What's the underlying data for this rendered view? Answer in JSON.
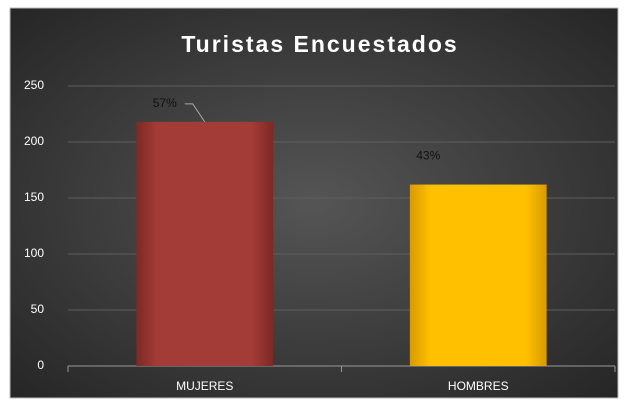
{
  "chart_data": {
    "type": "bar",
    "title": "Turistas Encuestados",
    "categories": [
      "MUJERES",
      "HOMBRES"
    ],
    "values": [
      218,
      162
    ],
    "data_labels": [
      "57%",
      "43%"
    ],
    "colors": [
      "#a33b36",
      "#ffc000"
    ],
    "ylim": [
      0,
      250
    ],
    "yticks": [
      0,
      50,
      100,
      150,
      200,
      250
    ],
    "grid": true
  }
}
